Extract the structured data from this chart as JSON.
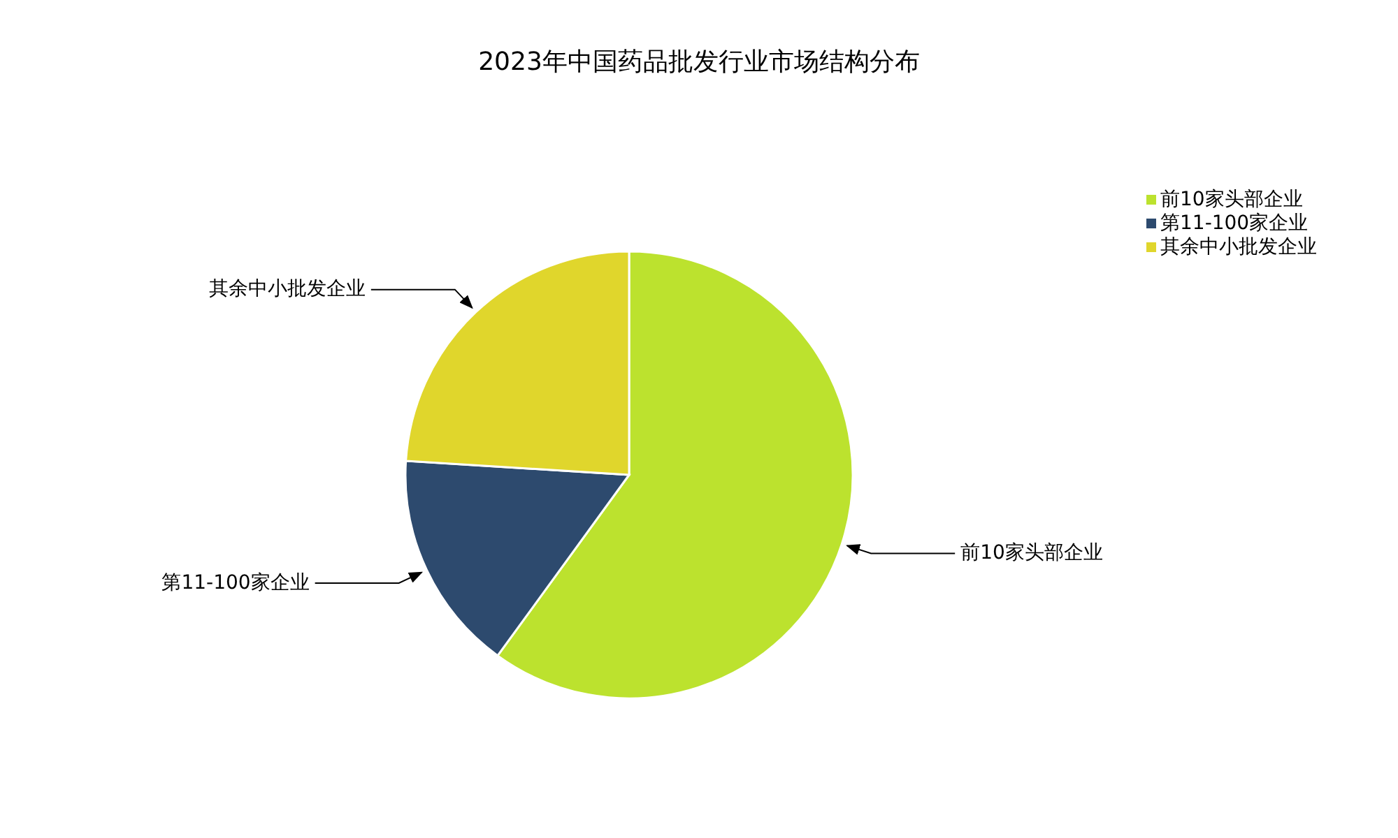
{
  "chart_data": {
    "type": "pie",
    "title": "2023年中国药品批发行业市场结构分布",
    "categories": [
      "前10家头部企业",
      "第11-100家企业",
      "其余中小批发企业"
    ],
    "values": [
      60,
      16,
      24
    ],
    "colors": [
      "#bce22e",
      "#2d4a6e",
      "#e0d62c"
    ],
    "legend": "top right"
  }
}
